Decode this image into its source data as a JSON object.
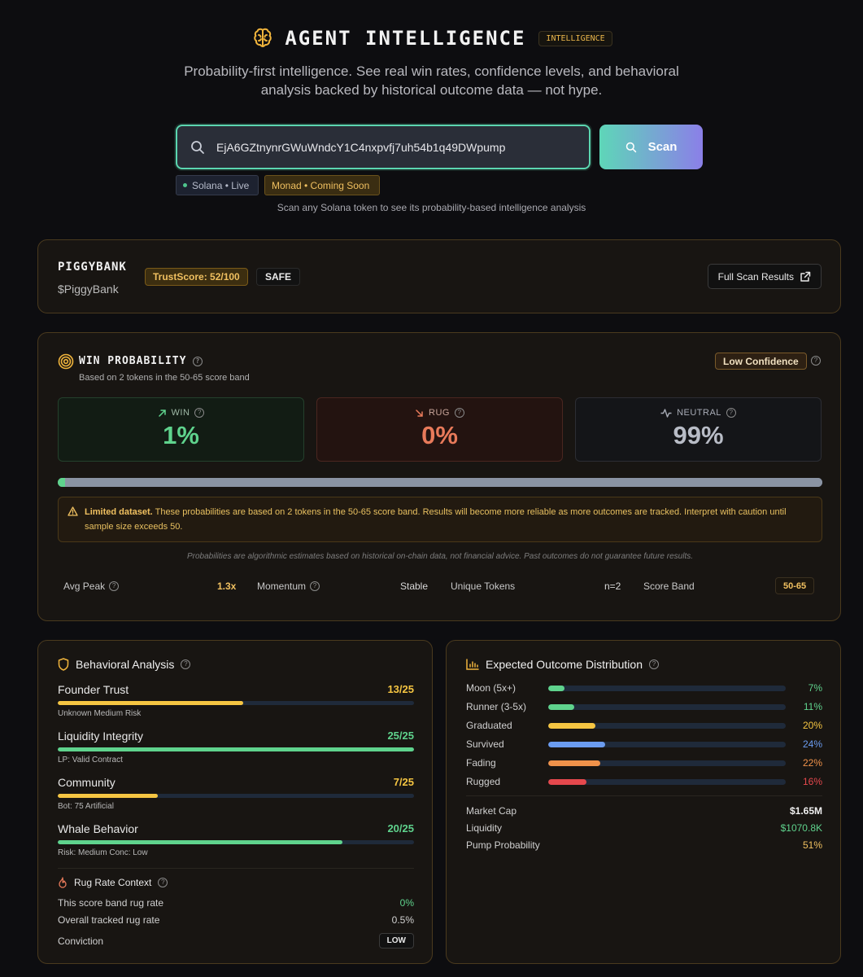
{
  "header": {
    "title": "AGENT INTELLIGENCE",
    "badge": "INTELLIGENCE",
    "subtitle_line1": "Probability-first intelligence. See real win rates, confidence levels, and behavioral",
    "subtitle_line2": "analysis backed by historical outcome data — not hype."
  },
  "search": {
    "value": "EjA6GZtnynrGWuWndcY1C4nxpvfj7uh54b1q49DWpump",
    "button_label": "Scan",
    "chain_solana": "Solana • Live",
    "chain_monad": "Monad • Coming Soon",
    "hint": "Scan any Solana token to see its probability-based intelligence analysis"
  },
  "token": {
    "name": "PIGGYBANK",
    "ticker": "$PiggyBank",
    "trust_score": "TrustScore: 52/100",
    "safety": "SAFE",
    "full_scan_label": "Full Scan Results"
  },
  "win_probability": {
    "title": "WIN PROBABILITY",
    "subtitle": "Based on 2 tokens in the 50-65 score band",
    "confidence": "Low Confidence",
    "win_label": "WIN",
    "win_value": "1%",
    "rug_label": "RUG",
    "rug_value": "0%",
    "neutral_label": "NEUTRAL",
    "neutral_value": "99%",
    "bar": {
      "win": 1,
      "rug": 0,
      "neutral": 99
    },
    "warning_bold": "Limited dataset.",
    "warning_text": " These probabilities are based on 2 tokens in the 50-65 score band. Results will become more reliable as more outcomes are tracked. Interpret with caution until sample size exceeds 50.",
    "disclaimer": "Probabilities are algorithmic estimates based on historical on-chain data, not financial advice. Past outcomes do not guarantee future results.",
    "metrics": {
      "avg_peak_label": "Avg Peak",
      "avg_peak_value": "1.3x",
      "momentum_label": "Momentum",
      "momentum_value": "Stable",
      "unique_tokens_label": "Unique Tokens",
      "unique_tokens_value": "n=2",
      "score_band_label": "Score Band",
      "score_band_value": "50-65"
    }
  },
  "behavioral": {
    "title": "Behavioral Analysis",
    "items": [
      {
        "label": "Founder Trust",
        "score": "13/25",
        "fraction": 0.52,
        "sub": "Unknown Medium Risk",
        "color": "#f5c542",
        "score_color": "#f5c542"
      },
      {
        "label": "Liquidity Integrity",
        "score": "25/25",
        "fraction": 1.0,
        "sub": "LP: Valid Contract",
        "color": "#5fd38d",
        "score_color": "#5fd38d"
      },
      {
        "label": "Community",
        "score": "7/25",
        "fraction": 0.28,
        "sub": "Bot: 75 Artificial",
        "color": "#f5c542",
        "score_color": "#f5c542"
      },
      {
        "label": "Whale Behavior",
        "score": "20/25",
        "fraction": 0.8,
        "sub": "Risk: Medium Conc: Low",
        "color": "#5fd38d",
        "score_color": "#5fd38d"
      }
    ],
    "rug_context": {
      "title": "Rug Rate Context",
      "band_label": "This score band rug rate",
      "band_value": "0%",
      "overall_label": "Overall tracked rug rate",
      "overall_value": "0.5%",
      "conviction_label": "Conviction",
      "conviction_value": "LOW"
    }
  },
  "outcome": {
    "title": "Expected Outcome Distribution",
    "rows": [
      {
        "label": "Moon (5x+)",
        "value": "7%",
        "fraction": 0.07,
        "color": "#5fd38d"
      },
      {
        "label": "Runner (3-5x)",
        "value": "11%",
        "fraction": 0.11,
        "color": "#5fd38d"
      },
      {
        "label": "Graduated",
        "value": "20%",
        "fraction": 0.2,
        "color": "#f5c542"
      },
      {
        "label": "Survived",
        "value": "24%",
        "fraction": 0.24,
        "color": "#6b9cf0"
      },
      {
        "label": "Fading",
        "value": "22%",
        "fraction": 0.22,
        "color": "#f0924a"
      },
      {
        "label": "Rugged",
        "value": "16%",
        "fraction": 0.16,
        "color": "#e5484d"
      }
    ],
    "market_cap_label": "Market Cap",
    "market_cap_value": "$1.65M",
    "liquidity_label": "Liquidity",
    "liquidity_value": "$1070.8K",
    "pump_label": "Pump Probability",
    "pump_value": "51%"
  },
  "colors": {
    "accent_teal": "#5ed6b8",
    "accent_purple": "#8b7fe8",
    "gold": "#f0c060",
    "win_green": "#5fd38d",
    "rug_red": "#e87a5a",
    "neutral_gray": "#8a93a3"
  }
}
